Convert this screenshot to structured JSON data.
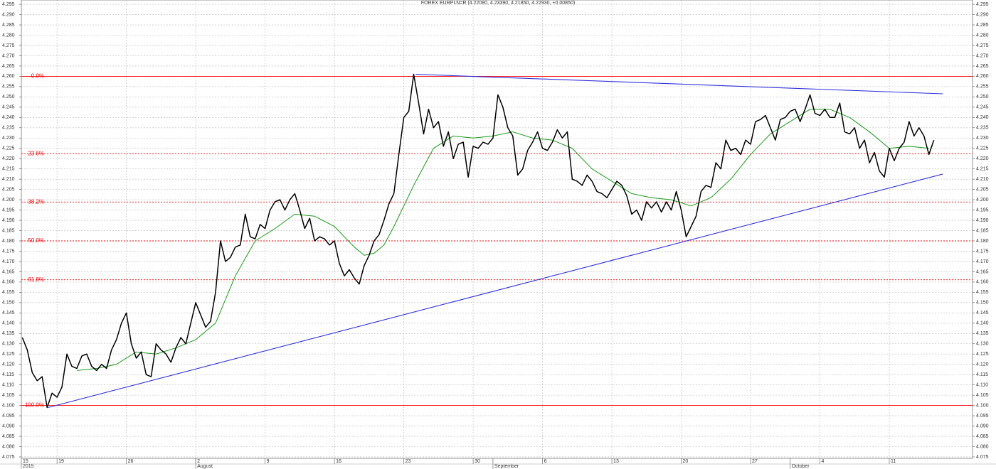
{
  "chart_data": {
    "type": "line",
    "title": "FOREX EURPLN=R (4.22080, 4.23390, 4.21850, 4.22930, +0.00850)",
    "xlim": [
      0.4,
      96.4
    ],
    "ylim": [
      4.0743,
      4.2971
    ],
    "grid": true,
    "yticks": [
      4.075,
      {
        "value": 4.08,
        "label": "4.080"
      },
      4.085,
      {
        "value": 4.09,
        "label": "4.090"
      },
      4.095,
      {
        "value": 4.1,
        "label": "4.100"
      },
      4.105,
      {
        "value": 4.11,
        "label": "4.110"
      },
      4.115,
      {
        "value": 4.12,
        "label": "4.120"
      },
      4.125,
      {
        "value": 4.13,
        "label": "4.130"
      },
      4.135,
      {
        "value": 4.14,
        "label": "4.140"
      },
      4.145,
      {
        "value": 4.15,
        "label": "4.150"
      },
      4.155,
      {
        "value": 4.16,
        "label": "4.160"
      },
      4.165,
      {
        "value": 4.17,
        "label": "4.170"
      },
      4.175,
      {
        "value": 4.18,
        "label": "4.180"
      },
      4.185,
      {
        "value": 4.19,
        "label": "4.190"
      },
      4.195,
      {
        "value": 4.2,
        "label": "4.200"
      },
      4.205,
      {
        "value": 4.21,
        "label": "4.210"
      },
      4.215,
      {
        "value": 4.22,
        "label": "4.220"
      },
      4.225,
      {
        "value": 4.23,
        "label": "4.230"
      },
      4.235,
      {
        "value": 4.24,
        "label": "4.240"
      },
      4.245,
      {
        "value": 4.25,
        "label": "4.250"
      },
      4.255,
      {
        "value": 4.26,
        "label": "4.260"
      },
      4.265,
      {
        "value": 4.27,
        "label": "4.270"
      },
      4.275,
      {
        "value": 4.28,
        "label": "4.280"
      },
      4.285,
      {
        "value": 4.29,
        "label": "4.290"
      },
      4.295
    ],
    "xticks": [
      {
        "value": 0,
        "label": "15"
      },
      {
        "value": 4,
        "label": "19"
      },
      {
        "value": 11,
        "label": "26"
      },
      {
        "value": 18,
        "label": "2"
      },
      {
        "value": 25,
        "label": "9"
      },
      {
        "value": 32,
        "label": "16"
      },
      {
        "value": 39,
        "label": "23"
      },
      {
        "value": 46,
        "label": "30"
      },
      {
        "value": 53,
        "label": "6"
      },
      {
        "value": 60,
        "label": "13"
      },
      {
        "value": 67,
        "label": "20"
      },
      {
        "value": 74,
        "label": "27"
      },
      {
        "value": 81,
        "label": "4"
      },
      {
        "value": 88,
        "label": "11"
      }
    ],
    "month_ticks": [
      {
        "value": 0.4,
        "label": "2015"
      },
      {
        "value": 18,
        "label": "August"
      },
      {
        "value": 48,
        "label": "September"
      },
      {
        "value": 78,
        "label": "October"
      }
    ],
    "series": [
      {
        "color": "#000000",
        "x": [
          0.5,
          1,
          1.5,
          2,
          2.5,
          3,
          3.5,
          4,
          4.5,
          5,
          5.5,
          6,
          6.5,
          7,
          7.5,
          8,
          8.5,
          9,
          9.5,
          10,
          10.5,
          11,
          11.5,
          12,
          12.5,
          13,
          13.5,
          14,
          14.5,
          15,
          15.5,
          16,
          16.5,
          17,
          17.5,
          18,
          18.5,
          19,
          19.5,
          20,
          20.5,
          21,
          21.5,
          22,
          22.5,
          23,
          23.5,
          24,
          24.5,
          25,
          25.5,
          26,
          26.5,
          27,
          27.5,
          28,
          28.5,
          29,
          29.5,
          30,
          30.5,
          31,
          31.5,
          32,
          32.5,
          33,
          33.5,
          34,
          34.5,
          35,
          35.5,
          36,
          36.5,
          37,
          37.5,
          38,
          38.5,
          39,
          39.5,
          40,
          40.5,
          41,
          41.5,
          42,
          42.5,
          43,
          43.5,
          44,
          44.5,
          45,
          45.5,
          46,
          46.5,
          47,
          47.5,
          48,
          48.5,
          49,
          49.5,
          50,
          50.5,
          51,
          51.5,
          52,
          52.5,
          53,
          53.5,
          54,
          54.5,
          55,
          55.5,
          56,
          56.5,
          57,
          57.5,
          58,
          58.5,
          59,
          59.5,
          60,
          60.5,
          61,
          61.5,
          62,
          62.5,
          63,
          63.5,
          64,
          64.5,
          65,
          65.5,
          66,
          66.5,
          67,
          67.5,
          68,
          68.5,
          69,
          69.5,
          70,
          70.5,
          71,
          71.5,
          72,
          72.5,
          73,
          73.5,
          74,
          74.5,
          75,
          75.5,
          76,
          76.5,
          77,
          77.5,
          78,
          78.5,
          79,
          79.5,
          80,
          80.5,
          81,
          81.5,
          82,
          82.5,
          83,
          83.5,
          84,
          84.5,
          85,
          85.5,
          86,
          86.5,
          87,
          87.5,
          88,
          88.5,
          89,
          89.5,
          90,
          90.5,
          91,
          91.5,
          92,
          92.5
        ],
        "values": [
          4.133,
          4.127,
          4.116,
          4.112,
          4.114,
          4.099,
          4.106,
          4.104,
          4.109,
          4.125,
          4.119,
          4.118,
          4.124,
          4.125,
          4.119,
          4.117,
          4.12,
          4.118,
          4.127,
          4.132,
          4.14,
          4.145,
          4.13,
          4.123,
          4.126,
          4.115,
          4.114,
          4.13,
          4.127,
          4.125,
          4.121,
          4.128,
          4.133,
          4.13,
          4.14,
          4.15,
          4.144,
          4.138,
          4.141,
          4.155,
          4.18,
          4.17,
          4.172,
          4.177,
          4.178,
          4.193,
          4.182,
          4.181,
          4.188,
          4.186,
          4.195,
          4.199,
          4.2,
          4.195,
          4.2,
          4.203,
          4.195,
          4.186,
          4.191,
          4.18,
          4.182,
          4.181,
          4.178,
          4.18,
          4.169,
          4.163,
          4.166,
          4.162,
          4.159,
          4.168,
          4.173,
          4.18,
          4.183,
          4.19,
          4.198,
          4.203,
          4.222,
          4.24,
          4.243,
          4.261,
          4.247,
          4.232,
          4.244,
          4.235,
          4.238,
          4.226,
          4.233,
          4.22,
          4.227,
          4.228,
          4.211,
          4.226,
          4.225,
          4.228,
          4.227,
          4.23,
          4.251,
          4.245,
          4.235,
          4.231,
          4.212,
          4.215,
          4.224,
          4.228,
          4.233,
          4.225,
          4.224,
          4.228,
          4.234,
          4.23,
          4.233,
          4.21,
          4.209,
          4.207,
          4.212,
          4.209,
          4.204,
          4.203,
          4.201,
          4.205,
          4.209,
          4.207,
          4.202,
          4.193,
          4.195,
          4.19,
          4.199,
          4.196,
          4.199,
          4.194,
          4.199,
          4.195,
          4.204,
          4.195,
          4.182,
          4.187,
          4.192,
          4.204,
          4.207,
          4.206,
          4.218,
          4.215,
          4.229,
          4.224,
          4.225,
          4.222,
          4.229,
          4.227,
          4.238,
          4.239,
          4.241,
          4.235,
          4.229,
          4.239,
          4.24,
          4.243,
          4.244,
          4.238,
          4.244,
          4.251,
          4.242,
          4.241,
          4.244,
          4.24,
          4.24,
          4.247,
          4.233,
          4.232,
          4.235,
          4.225,
          4.229,
          4.218,
          4.223,
          4.214,
          4.211,
          4.225,
          4.219,
          4.225,
          4.228,
          4.238,
          4.231,
          4.235,
          4.231,
          4.222,
          4.229
        ]
      },
      {
        "color": "#1a9a1a",
        "x": [
          6,
          8,
          10,
          12,
          14,
          16,
          18,
          20,
          22,
          24,
          26,
          28,
          30,
          32,
          34,
          35,
          36,
          37,
          38,
          40,
          42,
          44,
          46,
          48,
          50,
          52,
          54,
          56,
          58,
          60,
          62,
          64,
          66,
          68,
          70,
          72,
          74,
          76,
          78,
          80,
          82,
          84,
          86,
          88,
          90,
          92
        ],
        "values": [
          4.117,
          4.118,
          4.12,
          4.126,
          4.125,
          4.128,
          4.132,
          4.14,
          4.163,
          4.18,
          4.186,
          4.193,
          4.192,
          4.187,
          4.177,
          4.173,
          4.174,
          4.178,
          4.187,
          4.207,
          4.225,
          4.231,
          4.23,
          4.231,
          4.233,
          4.23,
          4.229,
          4.225,
          4.215,
          4.209,
          4.203,
          4.201,
          4.2,
          4.197,
          4.201,
          4.21,
          4.222,
          4.232,
          4.238,
          4.244,
          4.244,
          4.24,
          4.233,
          4.225,
          4.226,
          4.225
        ]
      }
    ],
    "fib_color": "#ff0000",
    "fib_levels": [
      {
        "value": 4.26,
        "label": "0.0%"
      },
      {
        "value": 4.2223,
        "label": "23.6%"
      },
      {
        "value": 4.1989,
        "label": "38.2%"
      },
      {
        "value": 4.18,
        "label": "50.0%"
      },
      {
        "value": 4.1611,
        "label": "61.8%"
      },
      {
        "value": 4.1,
        "label": "100.0%"
      }
    ],
    "trendlines": [
      {
        "color": "#3030e0",
        "x": [
          40.2,
          93.4
        ],
        "y": [
          4.261,
          4.2515
        ]
      },
      {
        "color": "#3030e0",
        "x": [
          3.1,
          93.4
        ],
        "y": [
          4.099,
          4.2125
        ]
      }
    ]
  }
}
